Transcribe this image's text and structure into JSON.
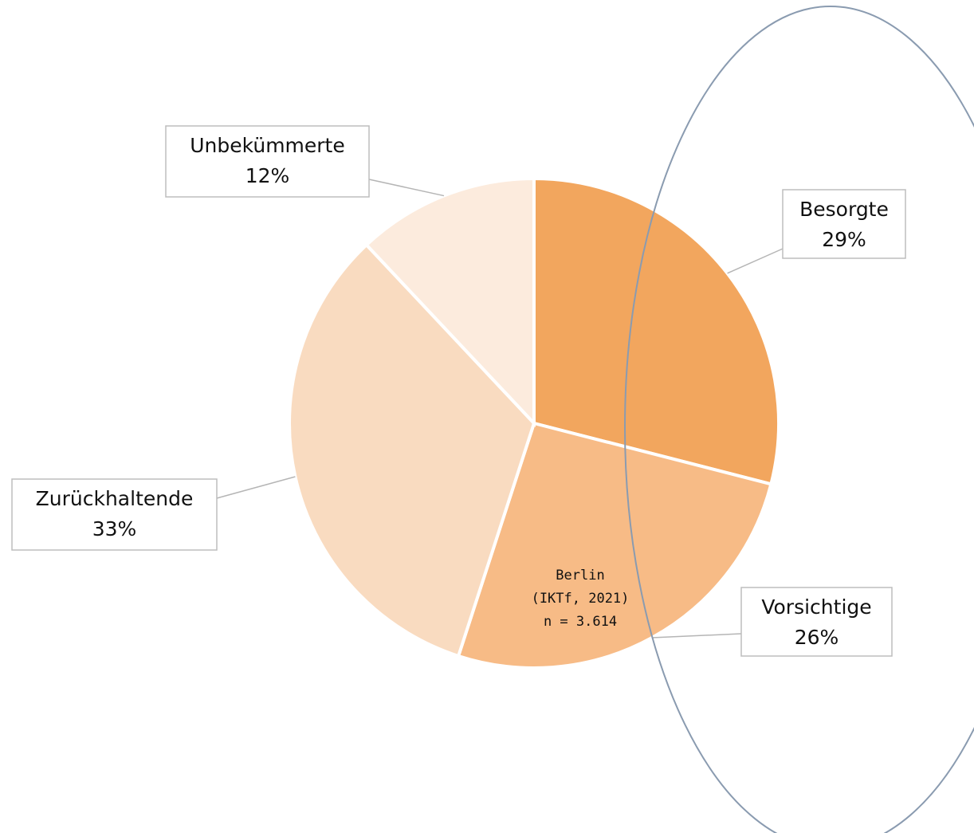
{
  "chart_data": {
    "type": "pie",
    "categories": [
      "Besorgte",
      "Vorsichtige",
      "Zurückhaltende",
      "Unbekümmerte"
    ],
    "values": [
      29,
      26,
      33,
      12
    ],
    "value_labels": [
      "29%",
      "26%",
      "33%",
      "12%"
    ],
    "colors": [
      "#f2a65e",
      "#f7bb86",
      "#f9dbc0",
      "#fcebdd"
    ],
    "caption": [
      "Berlin",
      "(IKTf, 2021)",
      "n = 3.614"
    ]
  }
}
